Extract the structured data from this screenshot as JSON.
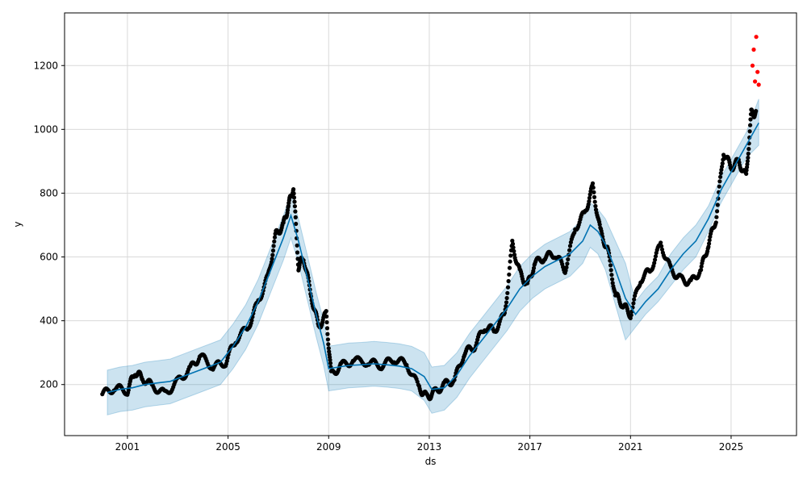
{
  "chart_data": {
    "type": "scatter",
    "title": "",
    "xlabel": "ds",
    "ylabel": "y",
    "xlim": [
      1998.5,
      2027.6
    ],
    "ylim": [
      40,
      1365
    ],
    "grid": true,
    "x_ticks": [
      2001,
      2005,
      2009,
      2013,
      2017,
      2021,
      2025
    ],
    "x_tick_labels": [
      "2001",
      "2005",
      "2009",
      "2013",
      "2017",
      "2021",
      "2025"
    ],
    "y_ticks": [
      200,
      400,
      600,
      800,
      1000,
      1200
    ],
    "y_tick_labels": [
      "200",
      "400",
      "600",
      "800",
      "1000",
      "1200"
    ],
    "colors": {
      "observed": "#000000",
      "forecast_line": "#0072B2",
      "uncertainty_band": "#0072B2",
      "highlight": "#ff0000",
      "grid": "#d9d9d9"
    },
    "series": [
      {
        "kind": "forecast",
        "x": [
          2000.2,
          2000.7,
          2001.2,
          2001.7,
          2002.2,
          2002.7,
          2003.2,
          2003.7,
          2004.2,
          2004.7,
          2005.2,
          2005.7,
          2006.2,
          2006.7,
          2007.2,
          2007.5,
          2007.8,
          2008.2,
          2008.5,
          2008.8,
          2009.0,
          2009.4,
          2009.8,
          2010.3,
          2010.8,
          2011.3,
          2011.8,
          2012.3,
          2012.8,
          2013.1,
          2013.6,
          2014.1,
          2014.6,
          2015.1,
          2015.6,
          2016.1,
          2016.6,
          2017.1,
          2017.6,
          2018.1,
          2018.6,
          2019.1,
          2019.4,
          2019.7,
          2020.0,
          2020.4,
          2020.8,
          2021.2,
          2021.6,
          2022.1,
          2022.6,
          2023.1,
          2023.6,
          2024.1,
          2024.6,
          2025.1,
          2025.6,
          2026.1
        ],
        "y": [
          175,
          185,
          190,
          200,
          205,
          210,
          225,
          240,
          255,
          270,
          320,
          380,
          460,
          560,
          660,
          730,
          650,
          520,
          420,
          330,
          250,
          255,
          260,
          262,
          265,
          262,
          258,
          250,
          225,
          185,
          190,
          230,
          290,
          340,
          390,
          440,
          500,
          540,
          570,
          590,
          610,
          650,
          700,
          680,
          640,
          560,
          470,
          420,
          460,
          500,
          560,
          610,
          650,
          720,
          810,
          880,
          950,
          1020
        ],
        "lower": [
          105,
          115,
          120,
          130,
          135,
          140,
          155,
          170,
          185,
          200,
          250,
          310,
          390,
          490,
          590,
          660,
          580,
          450,
          350,
          260,
          180,
          185,
          190,
          192,
          195,
          192,
          188,
          180,
          150,
          110,
          120,
          160,
          220,
          270,
          320,
          370,
          430,
          470,
          500,
          520,
          540,
          580,
          630,
          610,
          560,
          450,
          340,
          380,
          420,
          460,
          510,
          560,
          600,
          680,
          770,
          840,
          910,
          950
        ],
        "upper": [
          245,
          255,
          260,
          270,
          275,
          280,
          295,
          310,
          325,
          340,
          390,
          450,
          530,
          630,
          730,
          800,
          720,
          590,
          490,
          400,
          320,
          325,
          330,
          332,
          335,
          332,
          328,
          320,
          300,
          255,
          260,
          300,
          360,
          410,
          460,
          510,
          570,
          610,
          640,
          660,
          680,
          720,
          770,
          750,
          720,
          650,
          580,
          460,
          500,
          540,
          610,
          660,
          700,
          760,
          850,
          920,
          990,
          1095
        ]
      },
      {
        "kind": "observed",
        "x": [
          2000.0,
          2000.5,
          2001.0,
          2001.3,
          2001.6,
          2002.0,
          2002.5,
          2003.0,
          2003.5,
          2003.9,
          2004.4,
          2004.9,
          2005.3,
          2005.8,
          2006.2,
          2006.6,
          2006.9,
          2007.2,
          2007.4,
          2007.6,
          2007.8,
          2008.0,
          2008.3,
          2008.6,
          2008.9,
          2009.1,
          2009.5,
          2010.0,
          2010.6,
          2011.1,
          2011.6,
          2012.1,
          2012.6,
          2012.9,
          2013.2,
          2013.6,
          2014.0,
          2014.4,
          2014.8,
          2015.2,
          2015.6,
          2016.0,
          2016.3,
          2016.6,
          2016.9,
          2017.2,
          2017.6,
          2018.0,
          2018.4,
          2018.8,
          2019.2,
          2019.5,
          2019.8,
          2020.1,
          2020.4,
          2020.7,
          2021.0,
          2021.4,
          2021.8,
          2022.2,
          2022.6,
          2023.0,
          2023.4,
          2023.8,
          2024.1,
          2024.4,
          2024.7,
          2025.0,
          2025.3,
          2025.6,
          2025.8
        ],
        "y": [
          170,
          190,
          180,
          240,
          220,
          195,
          170,
          210,
          250,
          290,
          255,
          270,
          340,
          380,
          460,
          540,
          670,
          700,
          760,
          820,
          570,
          600,
          480,
          380,
          420,
          230,
          260,
          275,
          270,
          260,
          280,
          265,
          190,
          160,
          175,
          200,
          215,
          300,
          320,
          380,
          370,
          420,
          640,
          550,
          510,
          580,
          600,
          610,
          560,
          690,
          740,
          820,
          680,
          620,
          480,
          450,
          420,
          530,
          560,
          640,
          560,
          530,
          520,
          560,
          640,
          720,
          930,
          880,
          900,
          850,
          1050
        ],
        "highlight": [
          false,
          false,
          false,
          false,
          false,
          false,
          false,
          false,
          false,
          false,
          false,
          false,
          false,
          false,
          false,
          false,
          false,
          false,
          false,
          false,
          false,
          false,
          false,
          false,
          false,
          false,
          false,
          false,
          false,
          false,
          false,
          false,
          false,
          false,
          false,
          false,
          false,
          false,
          false,
          false,
          false,
          false,
          false,
          false,
          false,
          false,
          false,
          false,
          false,
          false,
          false,
          false,
          false,
          false,
          false,
          false,
          false,
          false,
          false,
          false,
          false,
          false,
          false,
          false,
          false,
          false,
          false,
          false,
          false,
          false,
          false
        ]
      },
      {
        "kind": "highlighted",
        "x": [
          2025.85,
          2025.9,
          2025.95,
          2026.0,
          2026.05,
          2026.1
        ],
        "y": [
          1200,
          1250,
          1150,
          1290,
          1180,
          1140
        ]
      }
    ]
  }
}
